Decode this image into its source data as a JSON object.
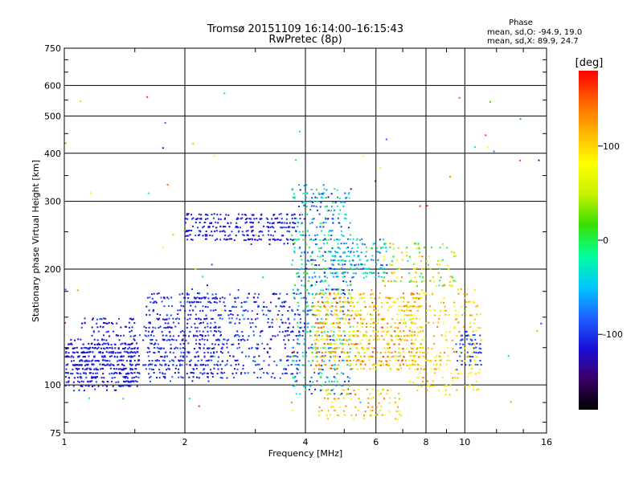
{
  "chart_data": {
    "type": "scatter",
    "title": "Tromsø 20151109 16:14:00–16:15:43",
    "subtitle": "RwPretec (8p)",
    "xlabel": "Frequency [MHz]",
    "ylabel": "Stationary phase Virtual Height [km]",
    "x_scale": "log",
    "y_scale": "log",
    "xlim": [
      1,
      16
    ],
    "ylim": [
      75,
      750
    ],
    "x_ticks": [
      1,
      2,
      4,
      6,
      8,
      10,
      16
    ],
    "y_ticks": [
      75,
      100,
      200,
      300,
      400,
      500,
      600,
      750
    ],
    "grid": true,
    "stats_box": {
      "title": "Phase",
      "line_o": "mean, sd,O: -94.9, 19.0",
      "line_x": "mean, sd,X:  89.9, 24.7"
    },
    "colorbar": {
      "label": "[deg]",
      "ticks": [
        100,
        0,
        -100
      ],
      "range": [
        -180,
        180
      ],
      "colors": [
        "#000000",
        "#3a0066",
        "#1a10d8",
        "#1e64ff",
        "#00c8ff",
        "#00ff9a",
        "#38e000",
        "#c8f000",
        "#ffff00",
        "#ffb400",
        "#ff6400",
        "#ff0000"
      ]
    },
    "clusters": [
      {
        "f": [
          1.0,
          1.55
        ],
        "h": [
          98,
          130
        ],
        "n": 420,
        "p": [
          -130,
          -95
        ]
      },
      {
        "f": [
          1.1,
          2.5
        ],
        "h": [
          102,
          150
        ],
        "n": 300,
        "p": [
          -125,
          -90
        ]
      },
      {
        "f": [
          1.6,
          3.9
        ],
        "h": [
          105,
          175
        ],
        "n": 600,
        "p": [
          -125,
          -80
        ]
      },
      {
        "f": [
          2.0,
          2.5
        ],
        "h": [
          165,
          170
        ],
        "n": 25,
        "p": [
          -120,
          -100
        ]
      },
      {
        "f": [
          2.0,
          3.8
        ],
        "h": [
          235,
          280
        ],
        "n": 280,
        "p": [
          -125,
          -95
        ]
      },
      {
        "f": [
          3.7,
          5.2
        ],
        "h": [
          95,
          330
        ],
        "n": 600,
        "p": [
          -120,
          20
        ]
      },
      {
        "f": [
          4.2,
          7.8
        ],
        "h": [
          110,
          175
        ],
        "n": 700,
        "p": [
          40,
          160
        ]
      },
      {
        "f": [
          4.6,
          6.4
        ],
        "h": [
          190,
          240
        ],
        "n": 160,
        "p": [
          -100,
          0
        ]
      },
      {
        "f": [
          6.2,
          9.5
        ],
        "h": [
          180,
          235
        ],
        "n": 120,
        "p": [
          -20,
          140
        ]
      },
      {
        "f": [
          4.3,
          7.0
        ],
        "h": [
          82,
          98
        ],
        "n": 100,
        "p": [
          40,
          140
        ]
      },
      {
        "f": [
          7.2,
          11.0
        ],
        "h": [
          95,
          180
        ],
        "n": 260,
        "p": [
          60,
          140
        ]
      },
      {
        "f": [
          9.5,
          11.0
        ],
        "h": [
          110,
          140
        ],
        "n": 60,
        "p": [
          -110,
          -80
        ]
      },
      {
        "f": [
          1.0,
          16.0
        ],
        "h": [
          80,
          600
        ],
        "n": 70,
        "p": [
          -150,
          170
        ]
      }
    ]
  }
}
